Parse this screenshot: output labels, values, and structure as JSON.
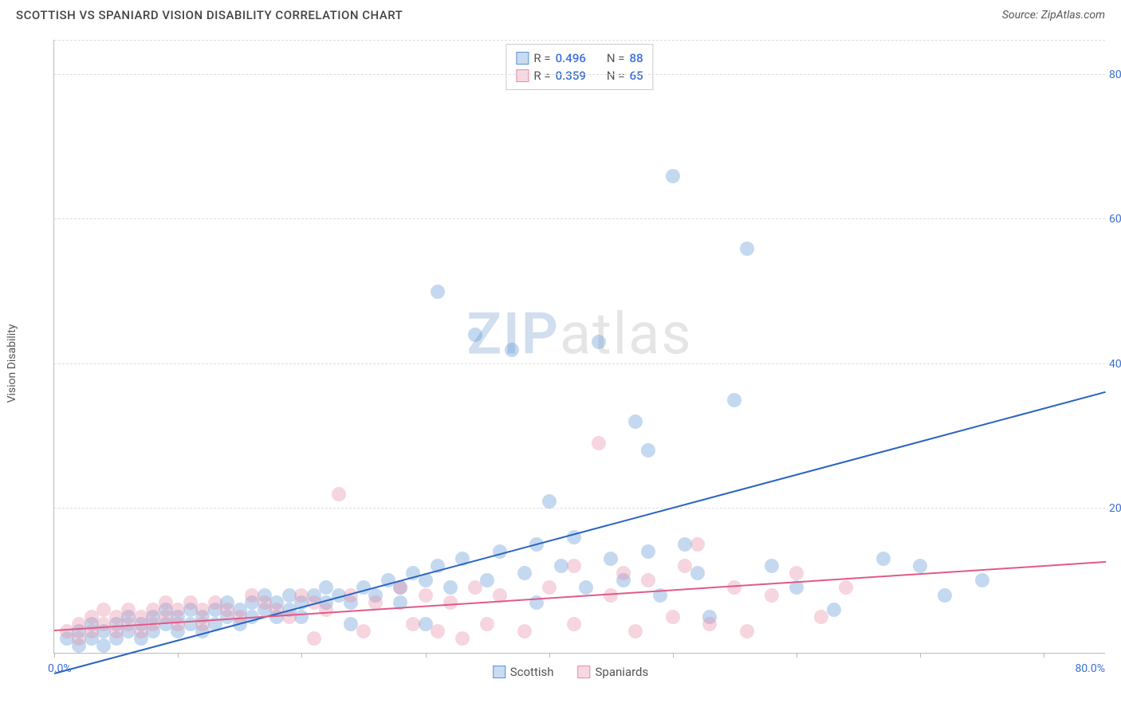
{
  "header": {
    "title": "SCOTTISH VS SPANIARD VISION DISABILITY CORRELATION CHART",
    "source_prefix": "Source: ",
    "source": "ZipAtlas.com"
  },
  "watermark": {
    "part1": "ZIP",
    "part2": "atlas"
  },
  "chart": {
    "type": "scatter_with_trend",
    "y_axis_title": "Vision Disability",
    "background_color": "#ffffff",
    "grid_color": "#dddddd",
    "axis_color": "#bbbbbb",
    "tick_label_color": "#3b6fd6",
    "xlim": [
      0,
      85
    ],
    "ylim": [
      0,
      85
    ],
    "y_ticks": [
      20,
      40,
      60,
      80
    ],
    "y_tick_labels": [
      "20.0%",
      "40.0%",
      "60.0%",
      "80.0%"
    ],
    "x_ticks": [
      0,
      10,
      20,
      30,
      40,
      50,
      60,
      70,
      80
    ],
    "x_origin_label": "0.0%",
    "x_max_label": "80.0%",
    "marker_radius": 9,
    "marker_fill_opacity": 0.35,
    "marker_stroke_opacity": 0.9,
    "series": [
      {
        "name": "Scottish",
        "color": "#5a93d6",
        "line_color": "#2a63c2",
        "R": "0.496",
        "N": "88",
        "trend": {
          "x1": 0,
          "y1": -3,
          "x2": 85,
          "y2": 36
        },
        "points": [
          [
            1,
            2
          ],
          [
            2,
            3
          ],
          [
            2,
            1
          ],
          [
            3,
            2
          ],
          [
            3,
            4
          ],
          [
            4,
            3
          ],
          [
            4,
            1
          ],
          [
            5,
            4
          ],
          [
            5,
            2
          ],
          [
            6,
            3
          ],
          [
            6,
            5
          ],
          [
            7,
            4
          ],
          [
            7,
            2
          ],
          [
            8,
            5
          ],
          [
            8,
            3
          ],
          [
            9,
            4
          ],
          [
            9,
            6
          ],
          [
            10,
            5
          ],
          [
            10,
            3
          ],
          [
            11,
            6
          ],
          [
            11,
            4
          ],
          [
            12,
            5
          ],
          [
            12,
            3
          ],
          [
            13,
            6
          ],
          [
            13,
            4
          ],
          [
            14,
            5
          ],
          [
            14,
            7
          ],
          [
            15,
            6
          ],
          [
            15,
            4
          ],
          [
            16,
            7
          ],
          [
            16,
            5
          ],
          [
            17,
            6
          ],
          [
            17,
            8
          ],
          [
            18,
            7
          ],
          [
            18,
            5
          ],
          [
            19,
            8
          ],
          [
            19,
            6
          ],
          [
            20,
            7
          ],
          [
            20,
            5
          ],
          [
            21,
            8
          ],
          [
            22,
            7
          ],
          [
            22,
            9
          ],
          [
            23,
            8
          ],
          [
            24,
            7
          ],
          [
            24,
            4
          ],
          [
            25,
            9
          ],
          [
            26,
            8
          ],
          [
            27,
            10
          ],
          [
            28,
            9
          ],
          [
            28,
            7
          ],
          [
            29,
            11
          ],
          [
            30,
            10
          ],
          [
            30,
            4
          ],
          [
            31,
            12
          ],
          [
            31,
            50
          ],
          [
            32,
            9
          ],
          [
            33,
            13
          ],
          [
            34,
            44
          ],
          [
            35,
            10
          ],
          [
            36,
            14
          ],
          [
            37,
            42
          ],
          [
            38,
            11
          ],
          [
            39,
            15
          ],
          [
            39,
            7
          ],
          [
            40,
            21
          ],
          [
            41,
            12
          ],
          [
            42,
            16
          ],
          [
            43,
            9
          ],
          [
            44,
            43
          ],
          [
            45,
            13
          ],
          [
            46,
            10
          ],
          [
            47,
            32
          ],
          [
            48,
            14
          ],
          [
            48,
            28
          ],
          [
            49,
            8
          ],
          [
            50,
            66
          ],
          [
            51,
            15
          ],
          [
            52,
            11
          ],
          [
            53,
            5
          ],
          [
            55,
            35
          ],
          [
            56,
            56
          ],
          [
            58,
            12
          ],
          [
            60,
            9
          ],
          [
            63,
            6
          ],
          [
            67,
            13
          ],
          [
            70,
            12
          ],
          [
            72,
            8
          ],
          [
            75,
            10
          ]
        ]
      },
      {
        "name": "Spaniards",
        "color": "#e68aa5",
        "line_color": "#e05a88",
        "R": "0.359",
        "N": "65",
        "trend": {
          "x1": 0,
          "y1": 3,
          "x2": 85,
          "y2": 12.5
        },
        "points": [
          [
            1,
            3
          ],
          [
            2,
            4
          ],
          [
            2,
            2
          ],
          [
            3,
            5
          ],
          [
            3,
            3
          ],
          [
            4,
            4
          ],
          [
            4,
            6
          ],
          [
            5,
            5
          ],
          [
            5,
            3
          ],
          [
            6,
            6
          ],
          [
            6,
            4
          ],
          [
            7,
            5
          ],
          [
            7,
            3
          ],
          [
            8,
            6
          ],
          [
            8,
            4
          ],
          [
            9,
            5
          ],
          [
            9,
            7
          ],
          [
            10,
            6
          ],
          [
            10,
            4
          ],
          [
            11,
            7
          ],
          [
            12,
            6
          ],
          [
            12,
            4
          ],
          [
            13,
            7
          ],
          [
            14,
            6
          ],
          [
            15,
            5
          ],
          [
            16,
            8
          ],
          [
            17,
            7
          ],
          [
            18,
            6
          ],
          [
            19,
            5
          ],
          [
            20,
            8
          ],
          [
            21,
            7
          ],
          [
            21,
            2
          ],
          [
            22,
            6
          ],
          [
            23,
            22
          ],
          [
            24,
            8
          ],
          [
            25,
            3
          ],
          [
            26,
            7
          ],
          [
            28,
            9
          ],
          [
            29,
            4
          ],
          [
            30,
            8
          ],
          [
            31,
            3
          ],
          [
            32,
            7
          ],
          [
            33,
            2
          ],
          [
            34,
            9
          ],
          [
            35,
            4
          ],
          [
            36,
            8
          ],
          [
            38,
            3
          ],
          [
            40,
            9
          ],
          [
            42,
            4
          ],
          [
            42,
            12
          ],
          [
            44,
            29
          ],
          [
            45,
            8
          ],
          [
            46,
            11
          ],
          [
            47,
            3
          ],
          [
            48,
            10
          ],
          [
            50,
            5
          ],
          [
            51,
            12
          ],
          [
            52,
            15
          ],
          [
            53,
            4
          ],
          [
            55,
            9
          ],
          [
            56,
            3
          ],
          [
            58,
            8
          ],
          [
            60,
            11
          ],
          [
            62,
            5
          ],
          [
            64,
            9
          ]
        ]
      }
    ],
    "stats_labels": {
      "R": "R =",
      "N": "N ="
    },
    "legend_bottom": [
      "Scottish",
      "Spaniards"
    ]
  }
}
